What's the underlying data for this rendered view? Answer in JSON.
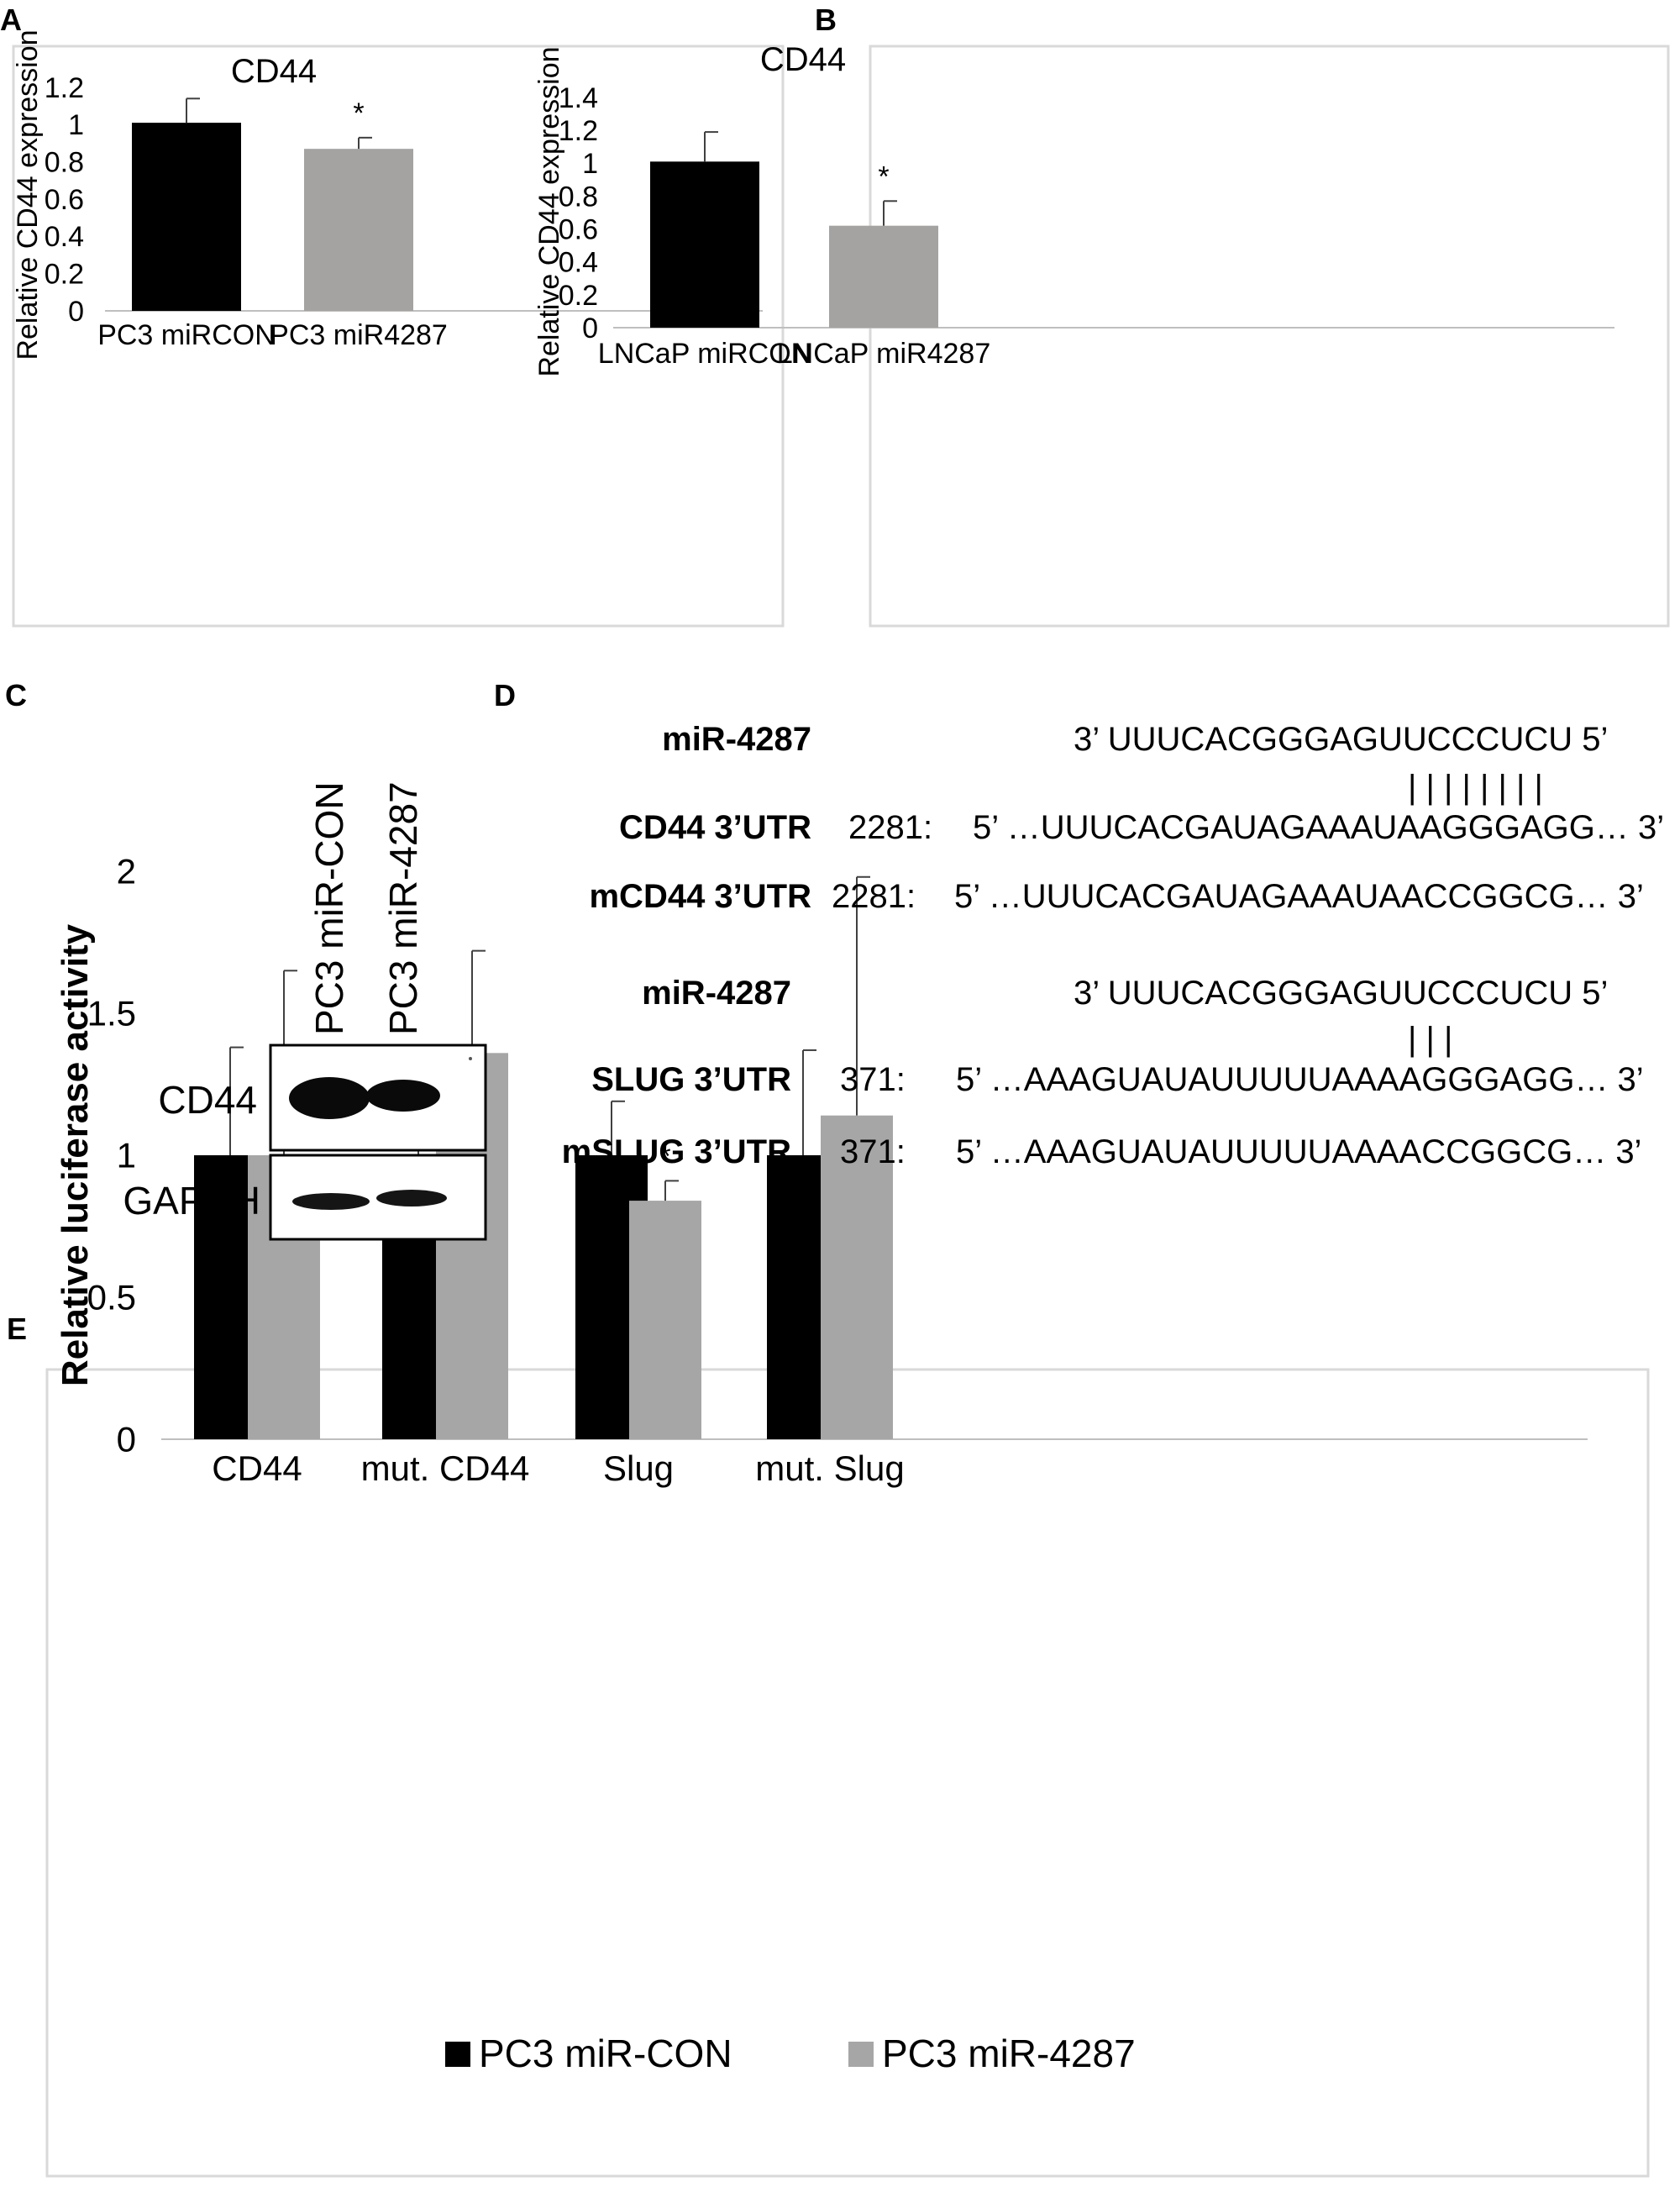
{
  "panel_letters": [
    "A",
    "B",
    "C",
    "D",
    "E"
  ],
  "colors": {
    "control": "#000000",
    "mir": "#a5a2a2",
    "mir_e": "#a6a6a6",
    "frame": "#d9d9d9",
    "axis": "#bfbfbf"
  },
  "chart_data": [
    {
      "type": "bar",
      "panel": "A",
      "title": "CD44",
      "ylabel": "Relative CD44 expression",
      "xlabel": "",
      "categories": [
        "PC3 miRCON",
        "PC3 miR4287"
      ],
      "values": [
        1.01,
        0.87
      ],
      "errors": [
        0.13,
        0.06
      ],
      "annotations": [
        "",
        "*"
      ],
      "ylim": [
        0,
        1.2
      ],
      "yticks": [
        "0",
        "0.2",
        "0.4",
        "0.6",
        "0.8",
        "1",
        "1.2"
      ],
      "grid": false
    },
    {
      "type": "bar",
      "panel": "B",
      "title": "CD44",
      "ylabel": "Relative CD44 expression",
      "xlabel": "",
      "categories": [
        "LNCaP miRCON",
        "LNCaP miR4287"
      ],
      "values": [
        1.01,
        0.62
      ],
      "errors": [
        0.18,
        0.15
      ],
      "annotations": [
        "",
        "*"
      ],
      "ylim": [
        0,
        1.4
      ],
      "yticks": [
        "0",
        "0.2",
        "0.4",
        "0.6",
        "0.8",
        "1",
        "1.2",
        "1.4"
      ],
      "grid": false
    },
    {
      "type": "bar",
      "panel": "E",
      "title": "",
      "ylabel": "Relative luciferase activity",
      "xlabel": "",
      "categories": [
        "CD44",
        "mut. CD44",
        "Slug",
        "mut. Slug"
      ],
      "series": [
        {
          "name": "PC3 miR-CON",
          "values": [
            1.0,
            1.0,
            1.0,
            1.0
          ],
          "errors": [
            0.38,
            0.3,
            0.19,
            0.37
          ]
        },
        {
          "name": "PC3 miR-4287",
          "values": [
            1.0,
            1.36,
            0.84,
            1.14
          ],
          "errors": [
            0.65,
            0.36,
            0.07,
            0.84
          ]
        }
      ],
      "annotations": [
        [
          "",
          ""
        ],
        [
          "",
          ""
        ],
        [
          "",
          "*"
        ],
        [
          "",
          ""
        ]
      ],
      "ylim": [
        0,
        2
      ],
      "yticks": [
        "0",
        "0.5",
        "1",
        "1.5",
        "2"
      ],
      "legend": "bottom",
      "grid": false
    }
  ],
  "western_blot": {
    "lanes": [
      "PC3 miR-CON",
      "PC3 miR-4287"
    ],
    "bands": [
      "CD44",
      "GAPDH"
    ]
  },
  "sequences": {
    "block1": {
      "mirna_label": "miR-4287",
      "mirna_seq": "3’   UUUCACGGGAGUUCCCUCU   5’",
      "pairing": "| | | | | | | |",
      "wt_label": "CD44 3’UTR",
      "wt_pos": "2281:",
      "wt_seq": "5’ …UUUCACGAUAGAAAUAAGGGAGG…   3’",
      "mut_label": "mCD44 3’UTR",
      "mut_pos": "2281:",
      "mut_seq": "5’    …UUUCACGAUAGAAAUAACCGGCG… 3’"
    },
    "block2": {
      "mirna_label": "miR-4287",
      "mirna_seq": "3’   UUUCACGGGAGUUCCCUCU   5’",
      "pairing": "|        | |",
      "wt_label": "SLUG 3’UTR",
      "wt_pos": "371:",
      "wt_seq": "5’ …AAAGUAUAUUUUUAAAAGGGAGG… 3’",
      "mut_label": "mSLUG 3’UTR",
      "mut_pos": "371:",
      "mut_seq": "5’ …AAAGUAUAUUUUUAAAACCGGCG…   3’"
    }
  }
}
